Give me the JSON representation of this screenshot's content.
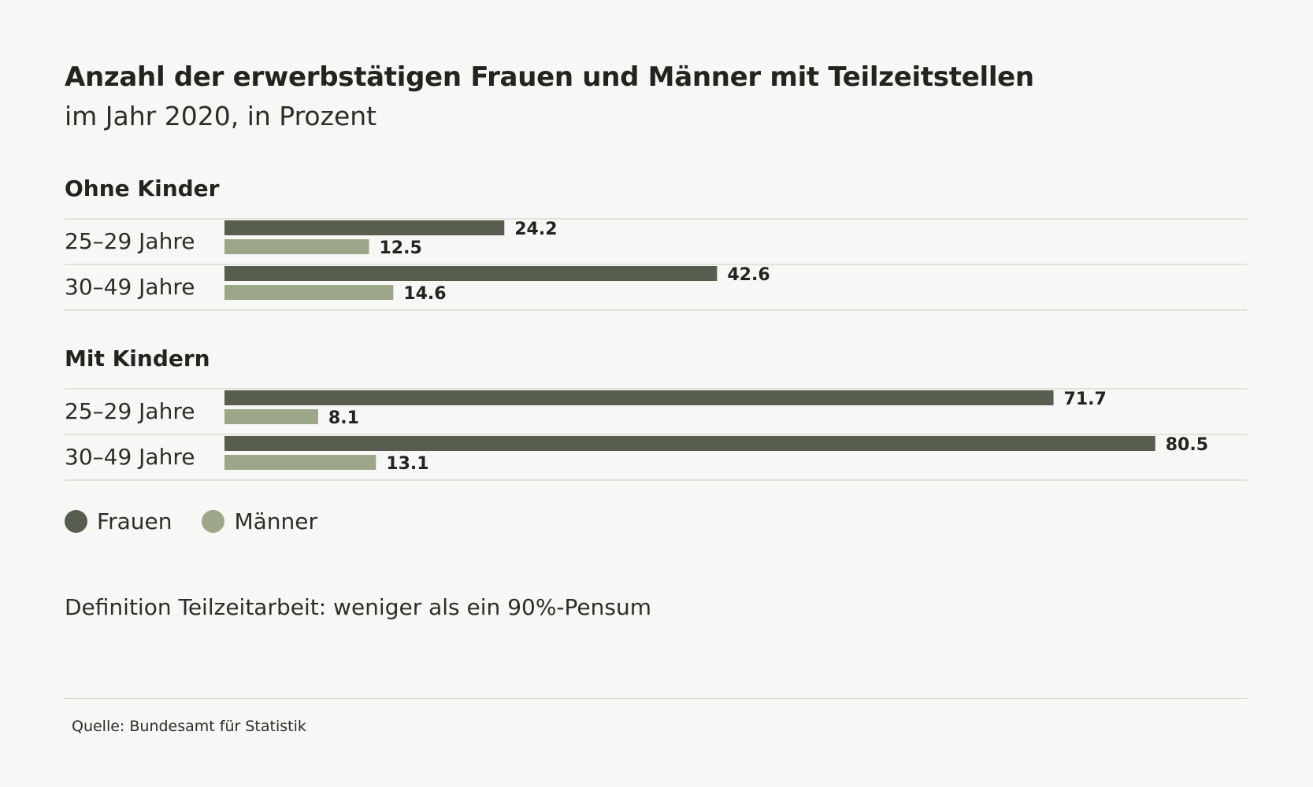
{
  "header": {
    "title": "Anzahl der erwerbstätigen Frauen und Männer mit Teilzeitstellen",
    "subtitle": "im Jahr 2020, in Prozent"
  },
  "colors": {
    "frauen": "#575e4f",
    "maenner": "#9ca688",
    "rule": "#d3d8c9",
    "background": "#f7f7f6",
    "text": "#262823"
  },
  "chart_data": {
    "type": "bar",
    "orientation": "horizontal",
    "xlim": [
      0,
      100
    ],
    "grid": false,
    "legend_position": "bottom-left",
    "groups": [
      {
        "title": "Ohne Kinder",
        "rows": [
          {
            "label": "25–29 Jahre",
            "values": [
              24.2,
              12.5
            ],
            "value_labels": [
              "24.2",
              "12.5"
            ]
          },
          {
            "label": "30–49 Jahre",
            "values": [
              42.6,
              14.6
            ],
            "value_labels": [
              "42.6",
              "14.6"
            ]
          }
        ]
      },
      {
        "title": "Mit Kindern",
        "rows": [
          {
            "label": "25–29 Jahre",
            "values": [
              71.7,
              8.1
            ],
            "value_labels": [
              "71.7",
              "8.1"
            ]
          },
          {
            "label": "30–49 Jahre",
            "values": [
              80.5,
              13.1
            ],
            "value_labels": [
              "80.5",
              "13.1"
            ]
          }
        ]
      }
    ],
    "series": [
      {
        "name": "Frauen"
      },
      {
        "name": "Männer"
      }
    ]
  },
  "legend": {
    "frauen_label": "Frauen",
    "maenner_label": "Männer"
  },
  "footer": {
    "definition": "Definition Teilzeitarbeit: weniger als ein 90%-Pensum",
    "source": "Quelle: Bundesamt für Statistik"
  }
}
